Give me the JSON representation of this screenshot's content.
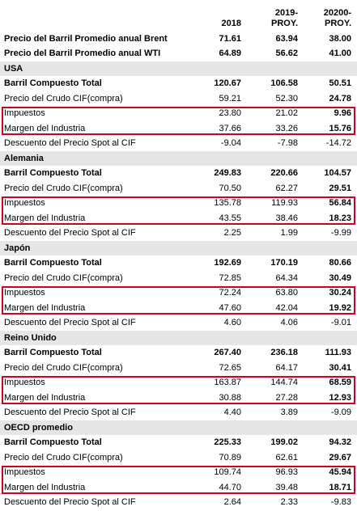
{
  "headers": {
    "c1": "2018",
    "c2_line1": "2019-",
    "c2_line2": "PROY.",
    "c3_line1": "20200-",
    "c3_line2": "PROY."
  },
  "top_rows": [
    {
      "label": "Precio del Barril Promedio anual Brent",
      "v1": "71.61",
      "v2": "63.94",
      "v3": "38.00"
    },
    {
      "label": "Precio del Barril Promedio anual WTI",
      "v1": "64.89",
      "v2": "56.62",
      "v3": "41.00"
    }
  ],
  "sections": [
    {
      "name": "USA",
      "rows": [
        {
          "label": "Barril Compuesto Total",
          "v1": "120.67",
          "v2": "106.58",
          "v3": "50.51"
        },
        {
          "label": "Precio del Crudo CIF(compra)",
          "v1": "59.21",
          "v2": "52.30",
          "v3": "24.78"
        },
        {
          "label": "Impuestos",
          "v1": "23.80",
          "v2": "21.02",
          "v3": "9.96"
        },
        {
          "label": "Margen del Industria",
          "v1": "37.66",
          "v2": "33.26",
          "v3": "15.76"
        },
        {
          "label": "Descuento del Precio Spot al CIF",
          "v1": "-9.04",
          "v2": "-7.98",
          "v3": "-14.72"
        }
      ]
    },
    {
      "name": "Alemania",
      "rows": [
        {
          "label": "Barril Compuesto Total",
          "v1": "249.83",
          "v2": "220.66",
          "v3": "104.57"
        },
        {
          "label": "Precio del Crudo CIF(compra)",
          "v1": "70.50",
          "v2": "62.27",
          "v3": "29.51"
        },
        {
          "label": "Impuestos",
          "v1": "135.78",
          "v2": "119.93",
          "v3": "56.84"
        },
        {
          "label": "Margen del Industria",
          "v1": "43.55",
          "v2": "38.46",
          "v3": "18.23"
        },
        {
          "label": "Descuento del Precio Spot al CIF",
          "v1": "2.25",
          "v2": "1.99",
          "v3": "-9.99"
        }
      ]
    },
    {
      "name": "Japón",
      "rows": [
        {
          "label": "Barril Compuesto Total",
          "v1": "192.69",
          "v2": "170.19",
          "v3": "80.66"
        },
        {
          "label": "Precio del Crudo CIF(compra)",
          "v1": "72.85",
          "v2": "64.34",
          "v3": "30.49"
        },
        {
          "label": "Impuestos",
          "v1": "72.24",
          "v2": "63.80",
          "v3": "30.24"
        },
        {
          "label": "Margen del Industria",
          "v1": "47.60",
          "v2": "42.04",
          "v3": "19.92"
        },
        {
          "label": "Descuento del Precio Spot al CIF",
          "v1": "4.60",
          "v2": "4.06",
          "v3": "-9.01"
        }
      ]
    },
    {
      "name": "Reino Unido",
      "rows": [
        {
          "label": "Barril Compuesto Total",
          "v1": "267.40",
          "v2": "236.18",
          "v3": "111.93"
        },
        {
          "label": "Precio del Crudo CIF(compra)",
          "v1": "72.65",
          "v2": "64.17",
          "v3": "30.41"
        },
        {
          "label": "Impuestos",
          "v1": "163.87",
          "v2": "144.74",
          "v3": "68.59"
        },
        {
          "label": "Margen del Industria",
          "v1": "30.88",
          "v2": "27.28",
          "v3": "12.93"
        },
        {
          "label": "Descuento del Precio Spot al CIF",
          "v1": "4.40",
          "v2": "3.89",
          "v3": "-9.09"
        }
      ]
    },
    {
      "name": "OECD promedio",
      "rows": [
        {
          "label": "Barril Compuesto Total",
          "v1": "225.33",
          "v2": "199.02",
          "v3": "94.32"
        },
        {
          "label": "Precio del Crudo CIF(compra)",
          "v1": "70.89",
          "v2": "62.61",
          "v3": "29.67"
        },
        {
          "label": "Impuestos",
          "v1": "109.74",
          "v2": "96.93",
          "v3": "45.94"
        },
        {
          "label": "Margen del Industria",
          "v1": "44.70",
          "v2": "39.48",
          "v3": "18.71"
        },
        {
          "label": "Descuento del Precio Spot al CIF",
          "v1": "2.64",
          "v2": "2.33",
          "v3": "-9.83"
        }
      ]
    }
  ],
  "colors": {
    "box_border": "#d0021b",
    "section_shade": "#e6e6e6"
  }
}
